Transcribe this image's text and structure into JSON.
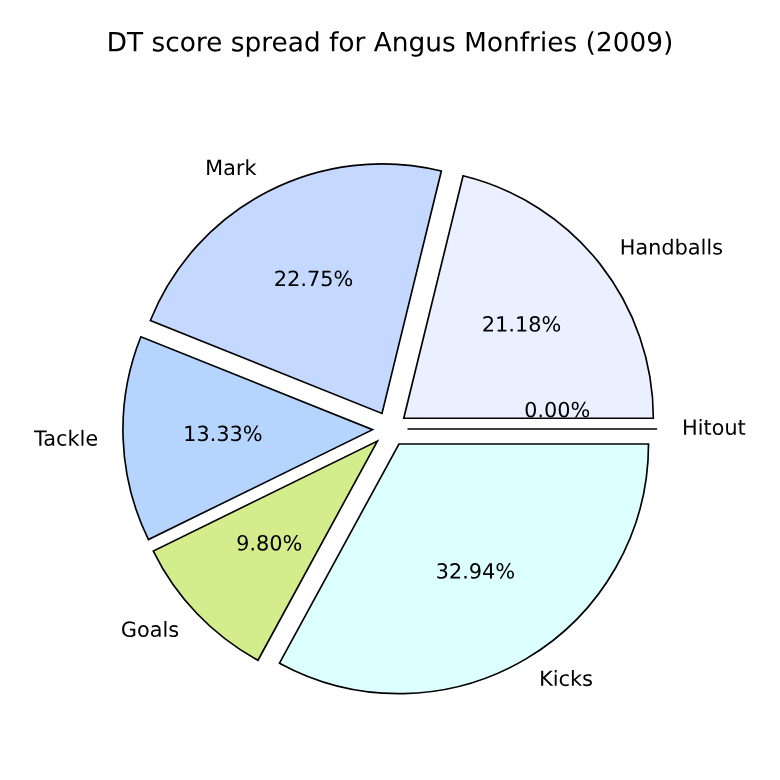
{
  "chart_data": {
    "type": "pie",
    "title": "DT score spread for Angus Monfries (2009)",
    "categories": [
      "Hitout",
      "Handballs",
      "Mark",
      "Tackle",
      "Goals",
      "Kicks"
    ],
    "values": [
      0.0,
      21.18,
      22.75,
      13.33,
      9.8,
      32.94
    ],
    "value_labels": [
      "0.00%",
      "21.18%",
      "22.75%",
      "13.33%",
      "9.80%",
      "32.94%"
    ],
    "colors": [
      "#ffffff",
      "#eaf0ff",
      "#c5d8ff",
      "#b5d5ff",
      "#d3ec8c",
      "#dcffff"
    ],
    "legend": false
  }
}
